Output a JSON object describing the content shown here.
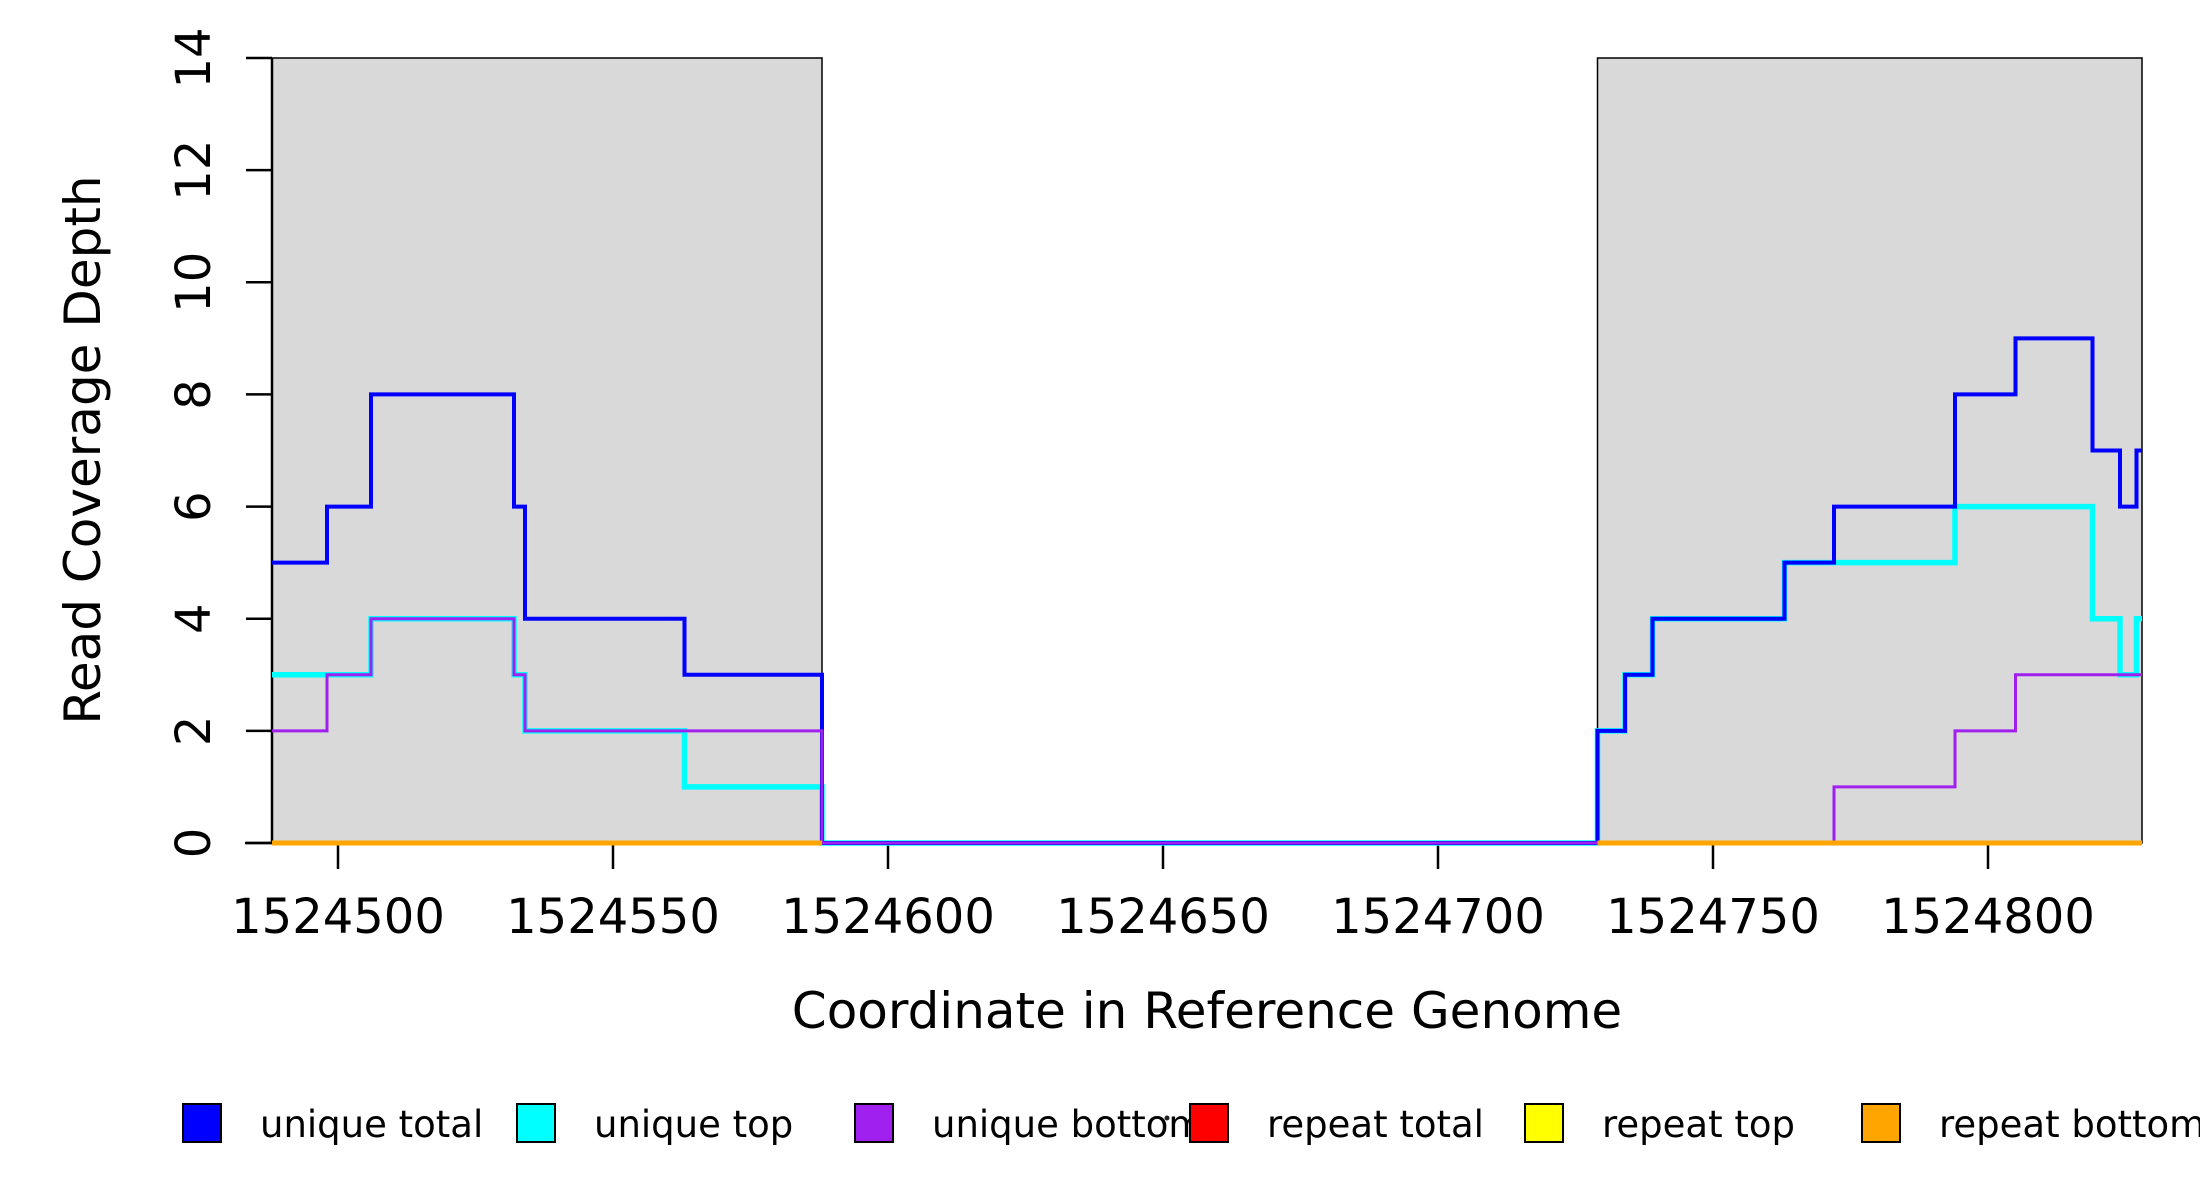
{
  "axes": {
    "x_label": "Coordinate in Reference Genome",
    "y_label": "Read Coverage Depth"
  },
  "chart_data": {
    "type": "line",
    "subtype": "step",
    "title": "",
    "xlabel": "Coordinate in Reference Genome",
    "ylabel": "Read Coverage Depth",
    "xlim": [
      1524488,
      1524828
    ],
    "ylim": [
      0,
      14
    ],
    "grid": false,
    "x_ticks": [
      1524500,
      1524550,
      1524600,
      1524650,
      1524700,
      1524750,
      1524800
    ],
    "y_ticks": [
      0,
      2,
      4,
      6,
      8,
      10,
      12,
      14
    ],
    "shaded_regions": [
      {
        "from": 1524488,
        "to": 1524588,
        "fill": "#D9D9D9",
        "border": "#000000"
      },
      {
        "from": 1524729,
        "to": 1524828,
        "fill": "#D9D9D9",
        "border": "#000000"
      }
    ],
    "series": [
      {
        "name": "unique top",
        "color": "#00FFFF",
        "stroke_width": 5.5,
        "segments": [
          [
            1524488,
            1524506,
            3
          ],
          [
            1524506,
            1524532,
            4
          ],
          [
            1524532,
            1524534,
            3
          ],
          [
            1524534,
            1524563,
            2
          ],
          [
            1524563,
            1524588,
            1
          ],
          [
            1524588,
            1524729,
            0
          ],
          [
            1524729,
            1524734,
            2
          ],
          [
            1524734,
            1524739,
            3
          ],
          [
            1524739,
            1524763,
            4
          ],
          [
            1524763,
            1524794,
            5
          ],
          [
            1524794,
            1524819,
            6
          ],
          [
            1524819,
            1524824,
            4
          ],
          [
            1524824,
            1524827,
            3
          ],
          [
            1524827,
            1524828,
            4
          ]
        ]
      },
      {
        "name": "unique total",
        "color": "#0000FF",
        "stroke_width": 4,
        "segments": [
          [
            1524488,
            1524498,
            5
          ],
          [
            1524498,
            1524506,
            6
          ],
          [
            1524506,
            1524532,
            8
          ],
          [
            1524532,
            1524534,
            6
          ],
          [
            1524534,
            1524563,
            4
          ],
          [
            1524563,
            1524588,
            3
          ],
          [
            1524588,
            1524729,
            0
          ],
          [
            1524729,
            1524734,
            2
          ],
          [
            1524734,
            1524739,
            3
          ],
          [
            1524739,
            1524763,
            4
          ],
          [
            1524763,
            1524772,
            5
          ],
          [
            1524772,
            1524794,
            6
          ],
          [
            1524794,
            1524805,
            8
          ],
          [
            1524805,
            1524819,
            9
          ],
          [
            1524819,
            1524824,
            7
          ],
          [
            1524824,
            1524827,
            6
          ],
          [
            1524827,
            1524828,
            7
          ]
        ]
      },
      {
        "name": "unique bottom",
        "color": "#A020F0",
        "stroke_width": 3,
        "segments": [
          [
            1524488,
            1524498,
            2
          ],
          [
            1524498,
            1524506,
            3
          ],
          [
            1524506,
            1524532,
            4
          ],
          [
            1524532,
            1524534,
            3
          ],
          [
            1524534,
            1524588,
            2
          ],
          [
            1524588,
            1524772,
            0
          ],
          [
            1524772,
            1524794,
            1
          ],
          [
            1524794,
            1524805,
            2
          ],
          [
            1524805,
            1524828,
            3
          ]
        ]
      },
      {
        "name": "repeat total",
        "color": "#FF0000",
        "stroke_width": 4,
        "segments": [
          [
            1524488,
            1524588,
            0
          ],
          [
            1524729,
            1524828,
            0
          ]
        ]
      },
      {
        "name": "repeat top",
        "color": "#FFFF00",
        "stroke_width": 4.5,
        "segments": [
          [
            1524488,
            1524588,
            0
          ],
          [
            1524729,
            1524828,
            0
          ]
        ]
      },
      {
        "name": "repeat bottom",
        "color": "#FFA500",
        "stroke_width": 5,
        "segments": [
          [
            1524488,
            1524588,
            0
          ],
          [
            1524729,
            1524828,
            0
          ]
        ]
      }
    ],
    "legend_position": "bottom"
  },
  "legend": {
    "items": [
      {
        "label": "unique total",
        "color": "#0000FF"
      },
      {
        "label": "unique top",
        "color": "#00FFFF"
      },
      {
        "label": "unique bottom",
        "color": "#A020F0"
      },
      {
        "label": "repeat total",
        "color": "#FF0000"
      },
      {
        "label": "repeat top",
        "color": "#FFFF00"
      },
      {
        "label": "repeat bottom",
        "color": "#FFA500"
      }
    ]
  },
  "colors": {
    "background": "#FFFFFF",
    "shaded_region": "#D9D9D9",
    "axis": "#000000"
  }
}
